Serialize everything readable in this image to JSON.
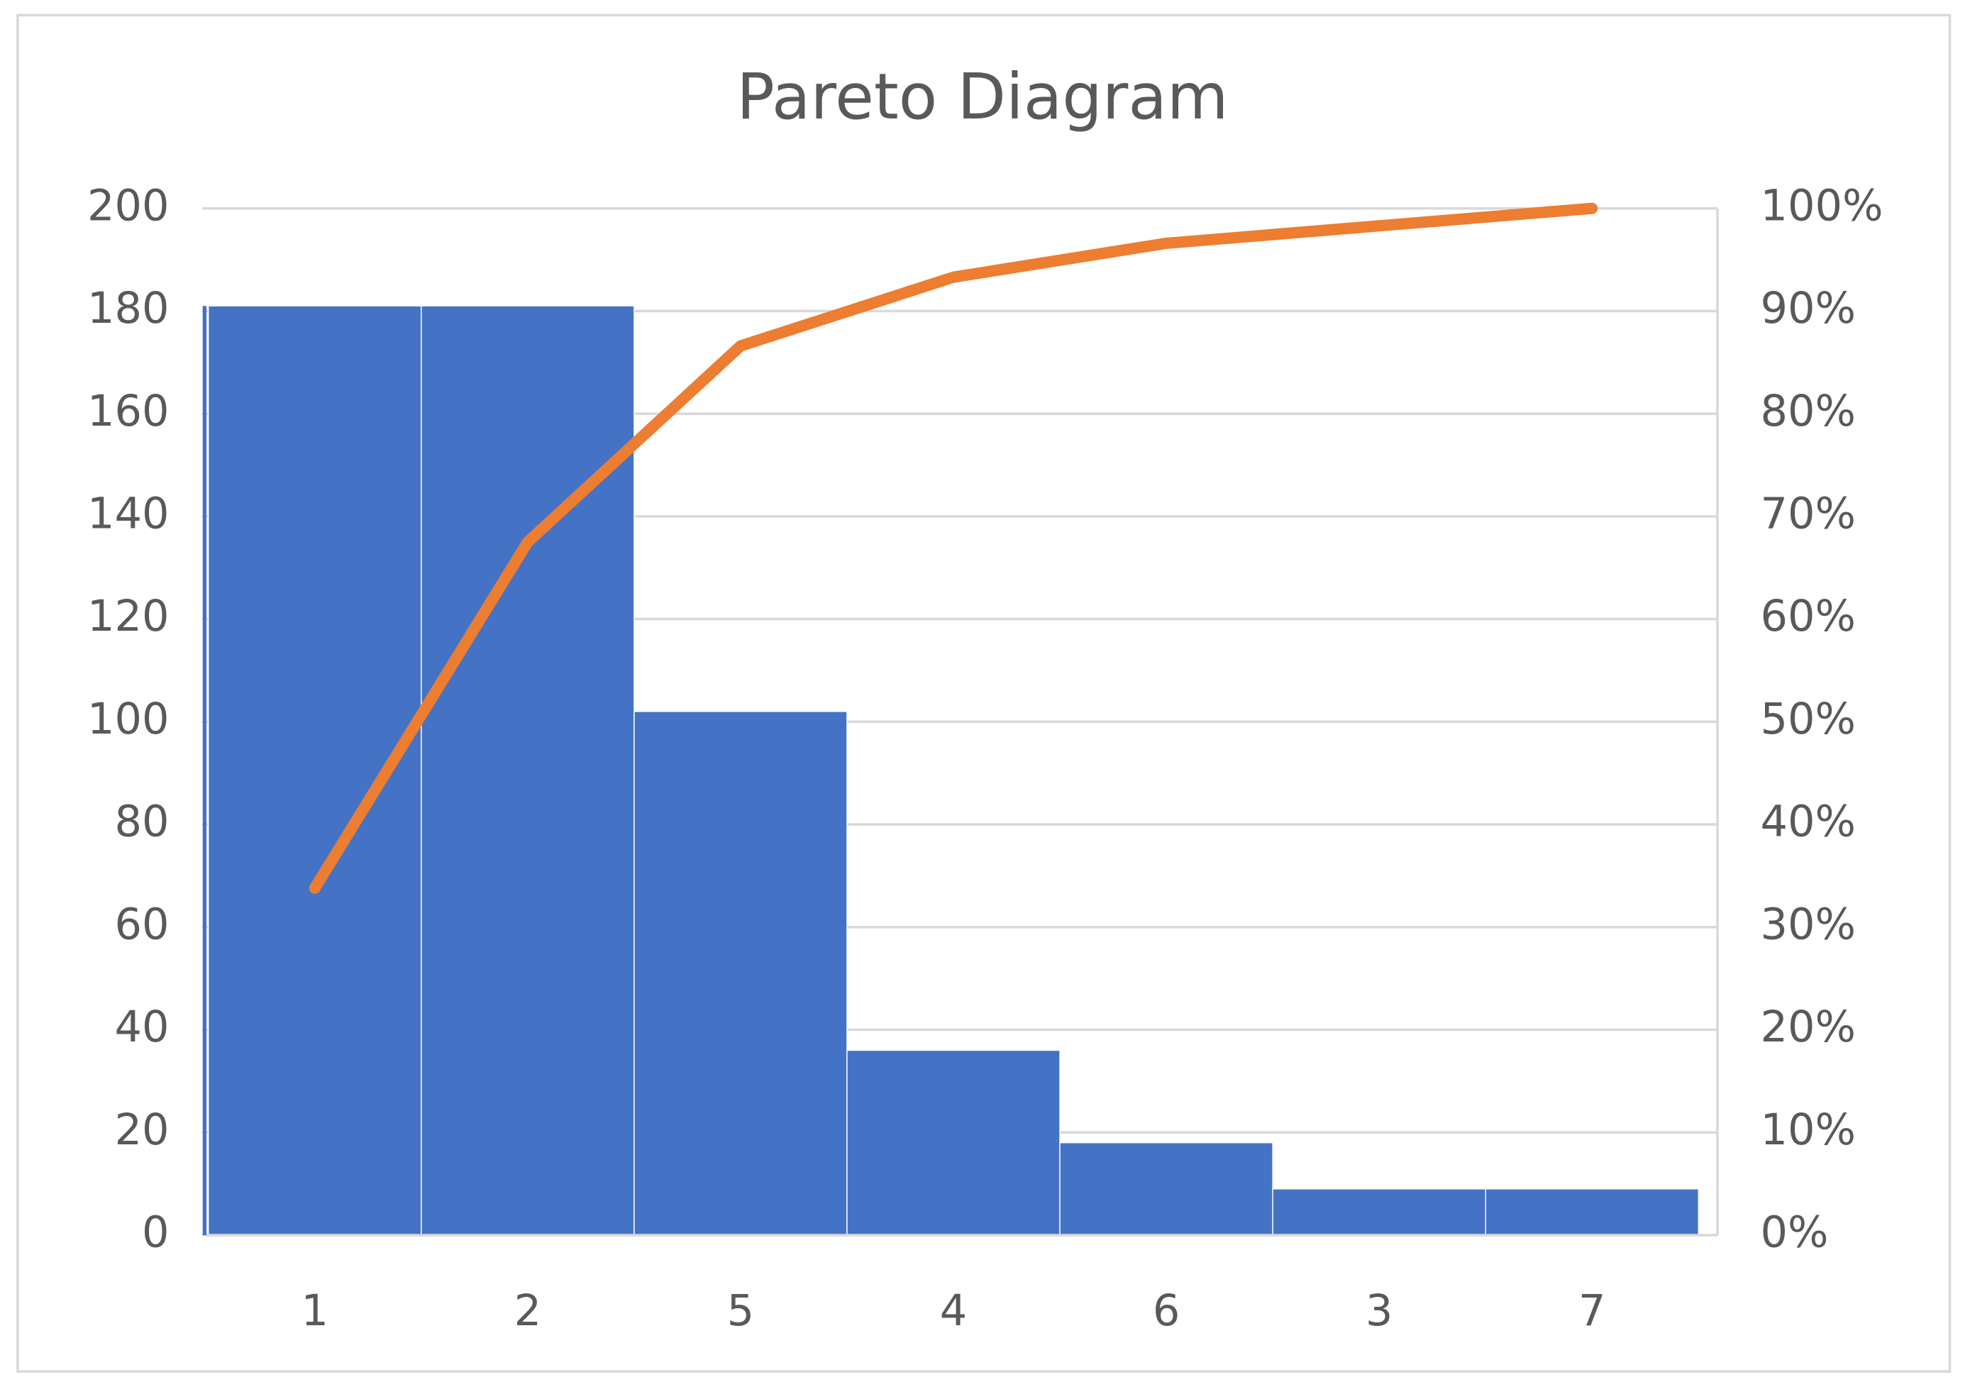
{
  "chart_data": {
    "type": "pareto",
    "title": "Pareto Diagram",
    "categories": [
      "1",
      "2",
      "5",
      "4",
      "6",
      "3",
      "7"
    ],
    "series": [
      {
        "type": "bar",
        "color": "#4472c4",
        "values": [
          181,
          181,
          102,
          36,
          18,
          9,
          9
        ]
      },
      {
        "type": "line",
        "color": "#ed7d31",
        "axis": "y2",
        "values": [
          33.8,
          67.5,
          86.6,
          93.3,
          96.6,
          98.3,
          100
        ]
      }
    ],
    "ylim": [
      0,
      200
    ],
    "yticks": [
      0,
      20,
      40,
      60,
      80,
      100,
      120,
      140,
      160,
      180,
      200
    ],
    "y2lim": [
      0,
      100
    ],
    "y2ticks": [
      {
        "value": 0,
        "label": "0%"
      },
      {
        "value": 10,
        "label": "10%"
      },
      {
        "value": 20,
        "label": "20%"
      },
      {
        "value": 30,
        "label": "30%"
      },
      {
        "value": 40,
        "label": "40%"
      },
      {
        "value": 50,
        "label": "50%"
      },
      {
        "value": 60,
        "label": "60%"
      },
      {
        "value": 70,
        "label": "70%"
      },
      {
        "value": 80,
        "label": "80%"
      },
      {
        "value": 90,
        "label": "90%"
      },
      {
        "value": 100,
        "label": "100%"
      }
    ],
    "grid": true
  }
}
